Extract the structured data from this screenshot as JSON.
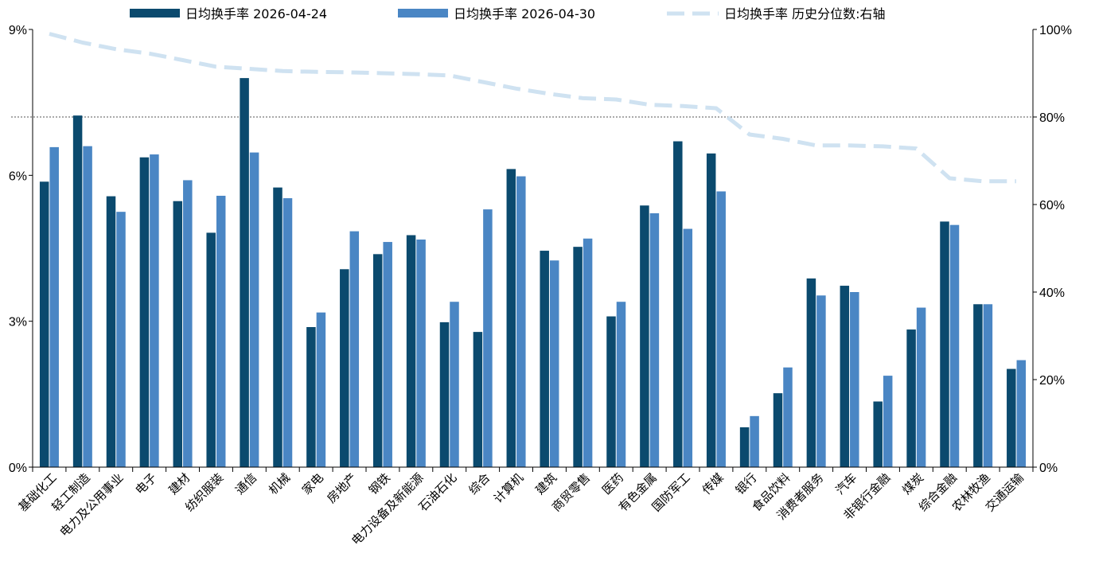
{
  "chart_data": {
    "type": "bar",
    "categories": [
      "基础化工",
      "轻工制造",
      "电力及公用事业",
      "电子",
      "建材",
      "纺织服装",
      "通信",
      "机械",
      "家电",
      "房地产",
      "钢铁",
      "电力设备及新能源",
      "石油石化",
      "综合",
      "计算机",
      "建筑",
      "商贸零售",
      "医药",
      "有色金属",
      "国防军工",
      "传媒",
      "银行",
      "食品饮料",
      "消费者服务",
      "汽车",
      "非银行金融",
      "煤炭",
      "综合金融",
      "农林牧渔",
      "交通运输"
    ],
    "series": [
      {
        "name": "日均换手率 2026-04-24",
        "type": "bar",
        "axis": "left",
        "color": "#0b4a6e",
        "values": [
          5.87,
          7.23,
          5.57,
          6.37,
          5.47,
          4.82,
          8.0,
          5.75,
          2.88,
          4.07,
          4.38,
          4.77,
          2.98,
          2.78,
          6.13,
          4.45,
          4.53,
          3.1,
          5.38,
          6.7,
          6.45,
          0.82,
          1.52,
          3.88,
          3.73,
          1.35,
          2.83,
          5.05,
          3.35,
          2.02
        ]
      },
      {
        "name": "日均换手率 2026-04-30",
        "type": "bar",
        "axis": "left",
        "color": "#4a86c4",
        "values": [
          6.58,
          6.6,
          5.25,
          6.43,
          5.9,
          5.58,
          6.47,
          5.53,
          3.18,
          4.85,
          4.63,
          4.68,
          3.4,
          5.3,
          5.98,
          4.25,
          4.7,
          3.4,
          5.22,
          4.9,
          5.67,
          1.05,
          2.05,
          3.53,
          3.6,
          1.88,
          3.28,
          4.98,
          3.35,
          2.2
        ]
      },
      {
        "name": "日均换手率 历史分位数:右轴",
        "type": "line",
        "axis": "right",
        "color": "#cfe2f1",
        "values": [
          99,
          97,
          95.5,
          94.5,
          93,
          91.5,
          91,
          90.5,
          90.3,
          90.2,
          90,
          89.8,
          89.5,
          88,
          86.5,
          85.3,
          84.3,
          84,
          82.8,
          82.5,
          82,
          76,
          75,
          73.5,
          73.5,
          73.3,
          72.8,
          66,
          65.3,
          65.3
        ]
      }
    ],
    "y_left": {
      "ylim": [
        0,
        9
      ],
      "ticks": [
        "0%",
        "3%",
        "6%",
        "9%"
      ]
    },
    "y_right": {
      "ylim": [
        0,
        100
      ],
      "ticks": [
        "0%",
        "20%",
        "40%",
        "60%",
        "80%",
        "100%"
      ]
    },
    "reference_line": {
      "axis": "right",
      "value": 80,
      "style": "dotted"
    },
    "legend_position": "top",
    "grid": false
  }
}
